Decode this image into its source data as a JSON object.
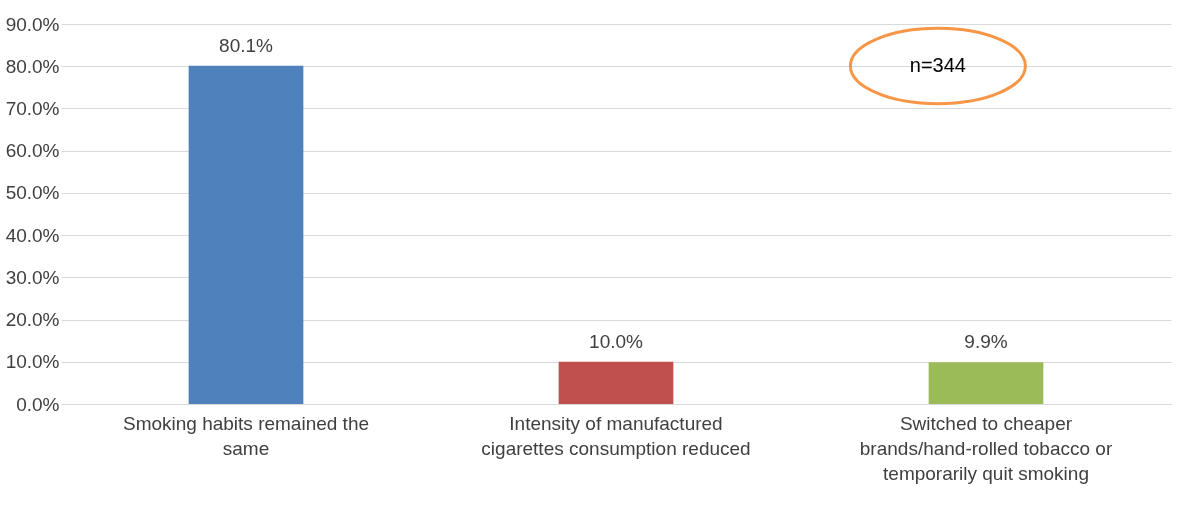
{
  "chart_data": {
    "type": "bar",
    "categories": [
      "Smoking habits remained the same",
      "Intensity of manufactured cigarettes consumption reduced",
      "Switched to cheaper brands/hand-rolled tobacco or temporarily quit smoking"
    ],
    "values": [
      80.1,
      10.0,
      9.9
    ],
    "colors": [
      "#4f81bd",
      "#c0504d",
      "#9bbb59"
    ],
    "value_labels": [
      "80.1%",
      "10.0%",
      "9.9%"
    ],
    "ylim": [
      0,
      90
    ],
    "yticks": [
      {
        "value": 0,
        "label": "0.0%"
      },
      {
        "value": 10,
        "label": "10.0%"
      },
      {
        "value": 20,
        "label": "20.0%"
      },
      {
        "value": 30,
        "label": "30.0%"
      },
      {
        "value": 40,
        "label": "40.0%"
      },
      {
        "value": 50,
        "label": "50.0%"
      },
      {
        "value": 60,
        "label": "60.0%"
      },
      {
        "value": 70,
        "label": "70.0%"
      },
      {
        "value": 80,
        "label": "80.0%"
      },
      {
        "value": 90,
        "label": "90.0%"
      }
    ],
    "grid": "y",
    "annotations": [
      "n=344"
    ]
  }
}
